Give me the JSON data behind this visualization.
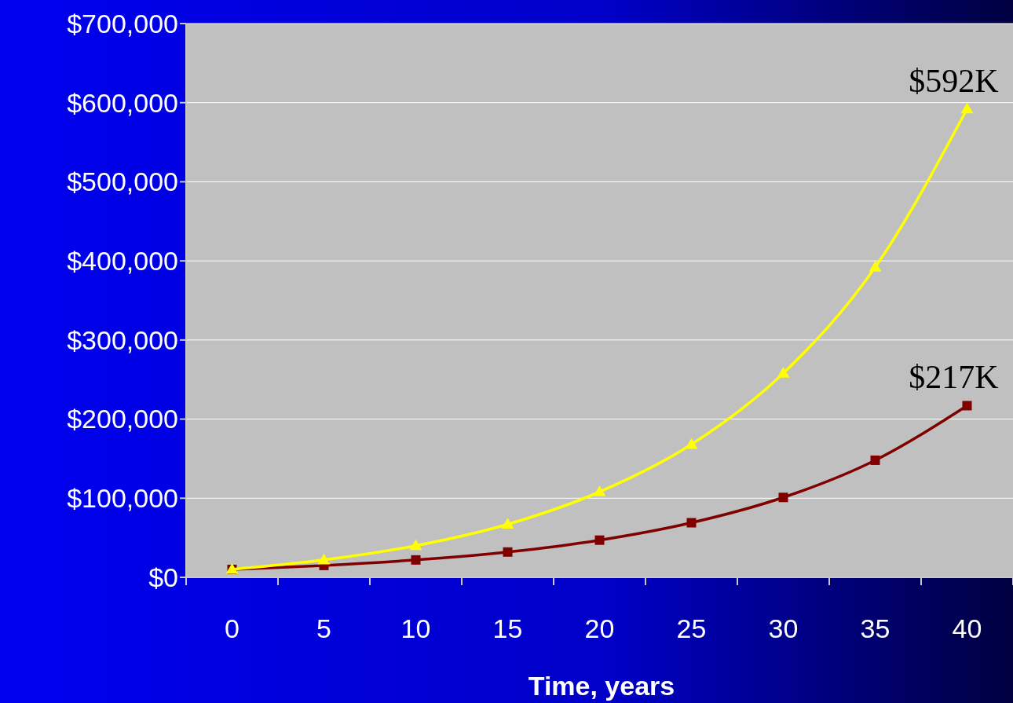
{
  "chart_data": {
    "type": "line",
    "xlabel": "Time, years",
    "categories": [
      "0",
      "5",
      "10",
      "15",
      "20",
      "25",
      "30",
      "35",
      "40"
    ],
    "series": [
      {
        "color": "#ffff00",
        "marker": "triangle",
        "values": [
          10000,
          22000,
          40000,
          67000,
          108000,
          168000,
          258000,
          392000,
          592000
        ]
      },
      {
        "color": "#800000",
        "marker": "square",
        "values": [
          10000,
          15000,
          22000,
          32000,
          47000,
          69000,
          101000,
          148000,
          217000
        ]
      }
    ],
    "ylim": [
      0,
      700000
    ],
    "yticks": [
      {
        "value": 0,
        "label": "$0"
      },
      {
        "value": 100000,
        "label": "$100,000"
      },
      {
        "value": 200000,
        "label": "$200,000"
      },
      {
        "value": 300000,
        "label": "$300,000"
      },
      {
        "value": 400000,
        "label": "$400,000"
      },
      {
        "value": 500000,
        "label": "$500,000"
      },
      {
        "value": 600000,
        "label": "$600,000"
      },
      {
        "value": 700000,
        "label": "$700,000"
      }
    ],
    "grid": "y",
    "annotations": [
      {
        "text": "$592K",
        "x": "40",
        "y": 592000
      },
      {
        "text": "$217K",
        "x": "40",
        "y": 217000
      }
    ]
  }
}
